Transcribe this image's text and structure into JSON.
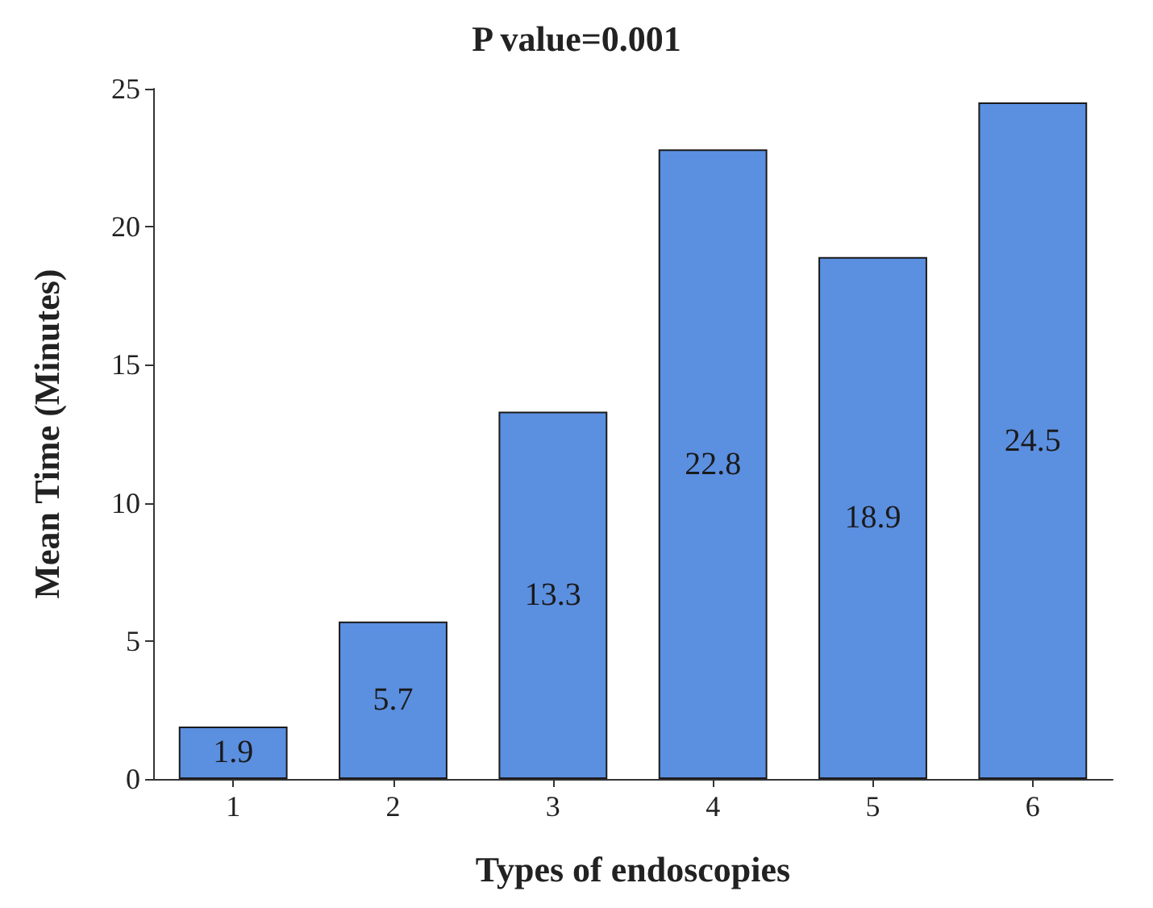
{
  "chart_data": {
    "type": "bar",
    "title": "P value=0.001",
    "xlabel": "Types of endoscopies",
    "ylabel": "Mean Time (Minutes)",
    "categories": [
      "1",
      "2",
      "3",
      "4",
      "5",
      "6"
    ],
    "values": [
      1.9,
      5.7,
      13.3,
      22.8,
      18.9,
      24.5
    ],
    "color": "#5b8fe0",
    "ylim": [
      0,
      25
    ],
    "yticks": [
      0,
      5,
      10,
      15,
      20,
      25
    ],
    "grid": false,
    "data_labels": true
  }
}
